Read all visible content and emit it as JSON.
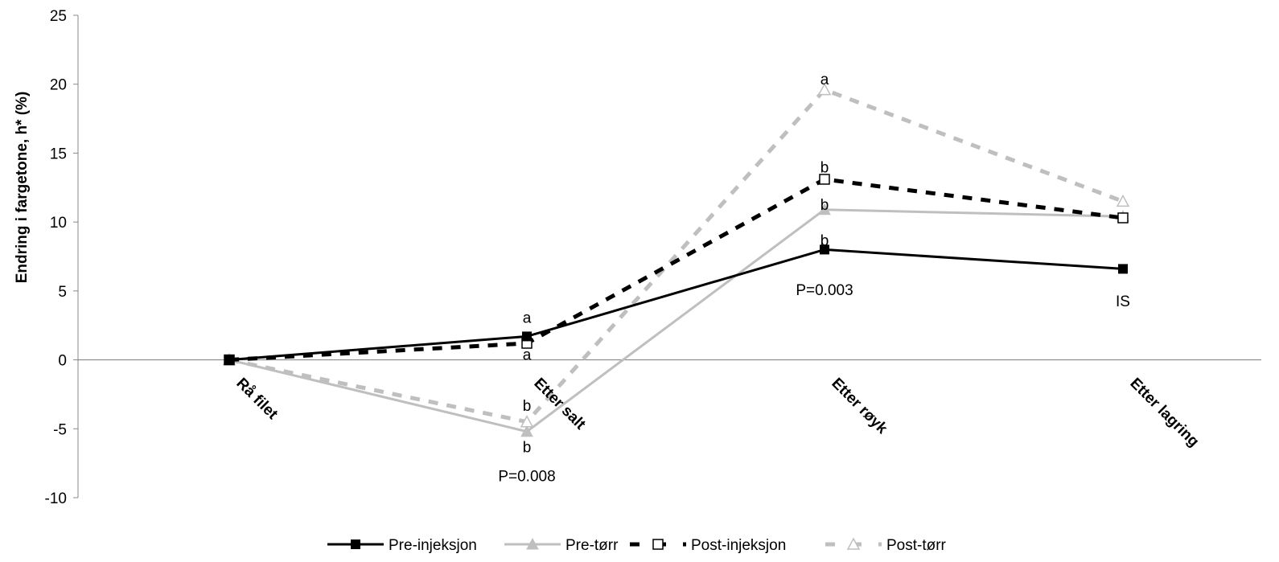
{
  "chart_data": {
    "type": "line",
    "ylabel": "Endring i fargetone, h* (%)",
    "xlabel": "",
    "ylim": [
      -10,
      25
    ],
    "yticks": [
      25,
      20,
      15,
      10,
      5,
      0,
      -5,
      -10
    ],
    "ytick_labels": [
      "25",
      "20",
      "15",
      "10",
      "5",
      "0",
      "-5",
      "-10"
    ],
    "categories": [
      "Rå filet",
      "Etter salt",
      "Etter røyk",
      "Etter lagring"
    ],
    "series": [
      {
        "name": "Pre-injeksjon",
        "values": [
          0,
          1.7,
          8.0,
          6.6
        ],
        "color": "#000000",
        "dash": "solid",
        "marker": "square-filled"
      },
      {
        "name": "Pre-tørr",
        "values": [
          0,
          -5.2,
          10.9,
          10.4
        ],
        "color": "#bfbfbf",
        "dash": "solid",
        "marker": "triangle-filled"
      },
      {
        "name": "Post-injeksjon",
        "values": [
          0,
          1.2,
          13.1,
          10.3
        ],
        "color": "#000000",
        "dash": "dashed",
        "marker": "square-open"
      },
      {
        "name": "Post-tørr",
        "values": [
          0,
          -4.5,
          19.6,
          11.5
        ],
        "color": "#bfbfbf",
        "dash": "dashed",
        "marker": "triangle-open"
      }
    ],
    "annotations": [
      {
        "text": "a",
        "cat": 1,
        "y": 3.1
      },
      {
        "text": "a",
        "cat": 1,
        "y": 0.4
      },
      {
        "text": "b",
        "cat": 1,
        "y": -3.3
      },
      {
        "text": "b",
        "cat": 1,
        "y": -6.3
      },
      {
        "text": "P=0.008",
        "cat": 1,
        "y": -8.4
      },
      {
        "text": "a",
        "cat": 2,
        "y": 20.4
      },
      {
        "text": "b",
        "cat": 2,
        "y": 14.0
      },
      {
        "text": "b",
        "cat": 2,
        "y": 11.3
      },
      {
        "text": "b",
        "cat": 2,
        "y": 8.7
      },
      {
        "text": "P=0.003",
        "cat": 2,
        "y": 5.1
      },
      {
        "text": "IS",
        "cat": 3,
        "y": 4.3
      }
    ],
    "grid": false,
    "legend_position": "bottom"
  }
}
